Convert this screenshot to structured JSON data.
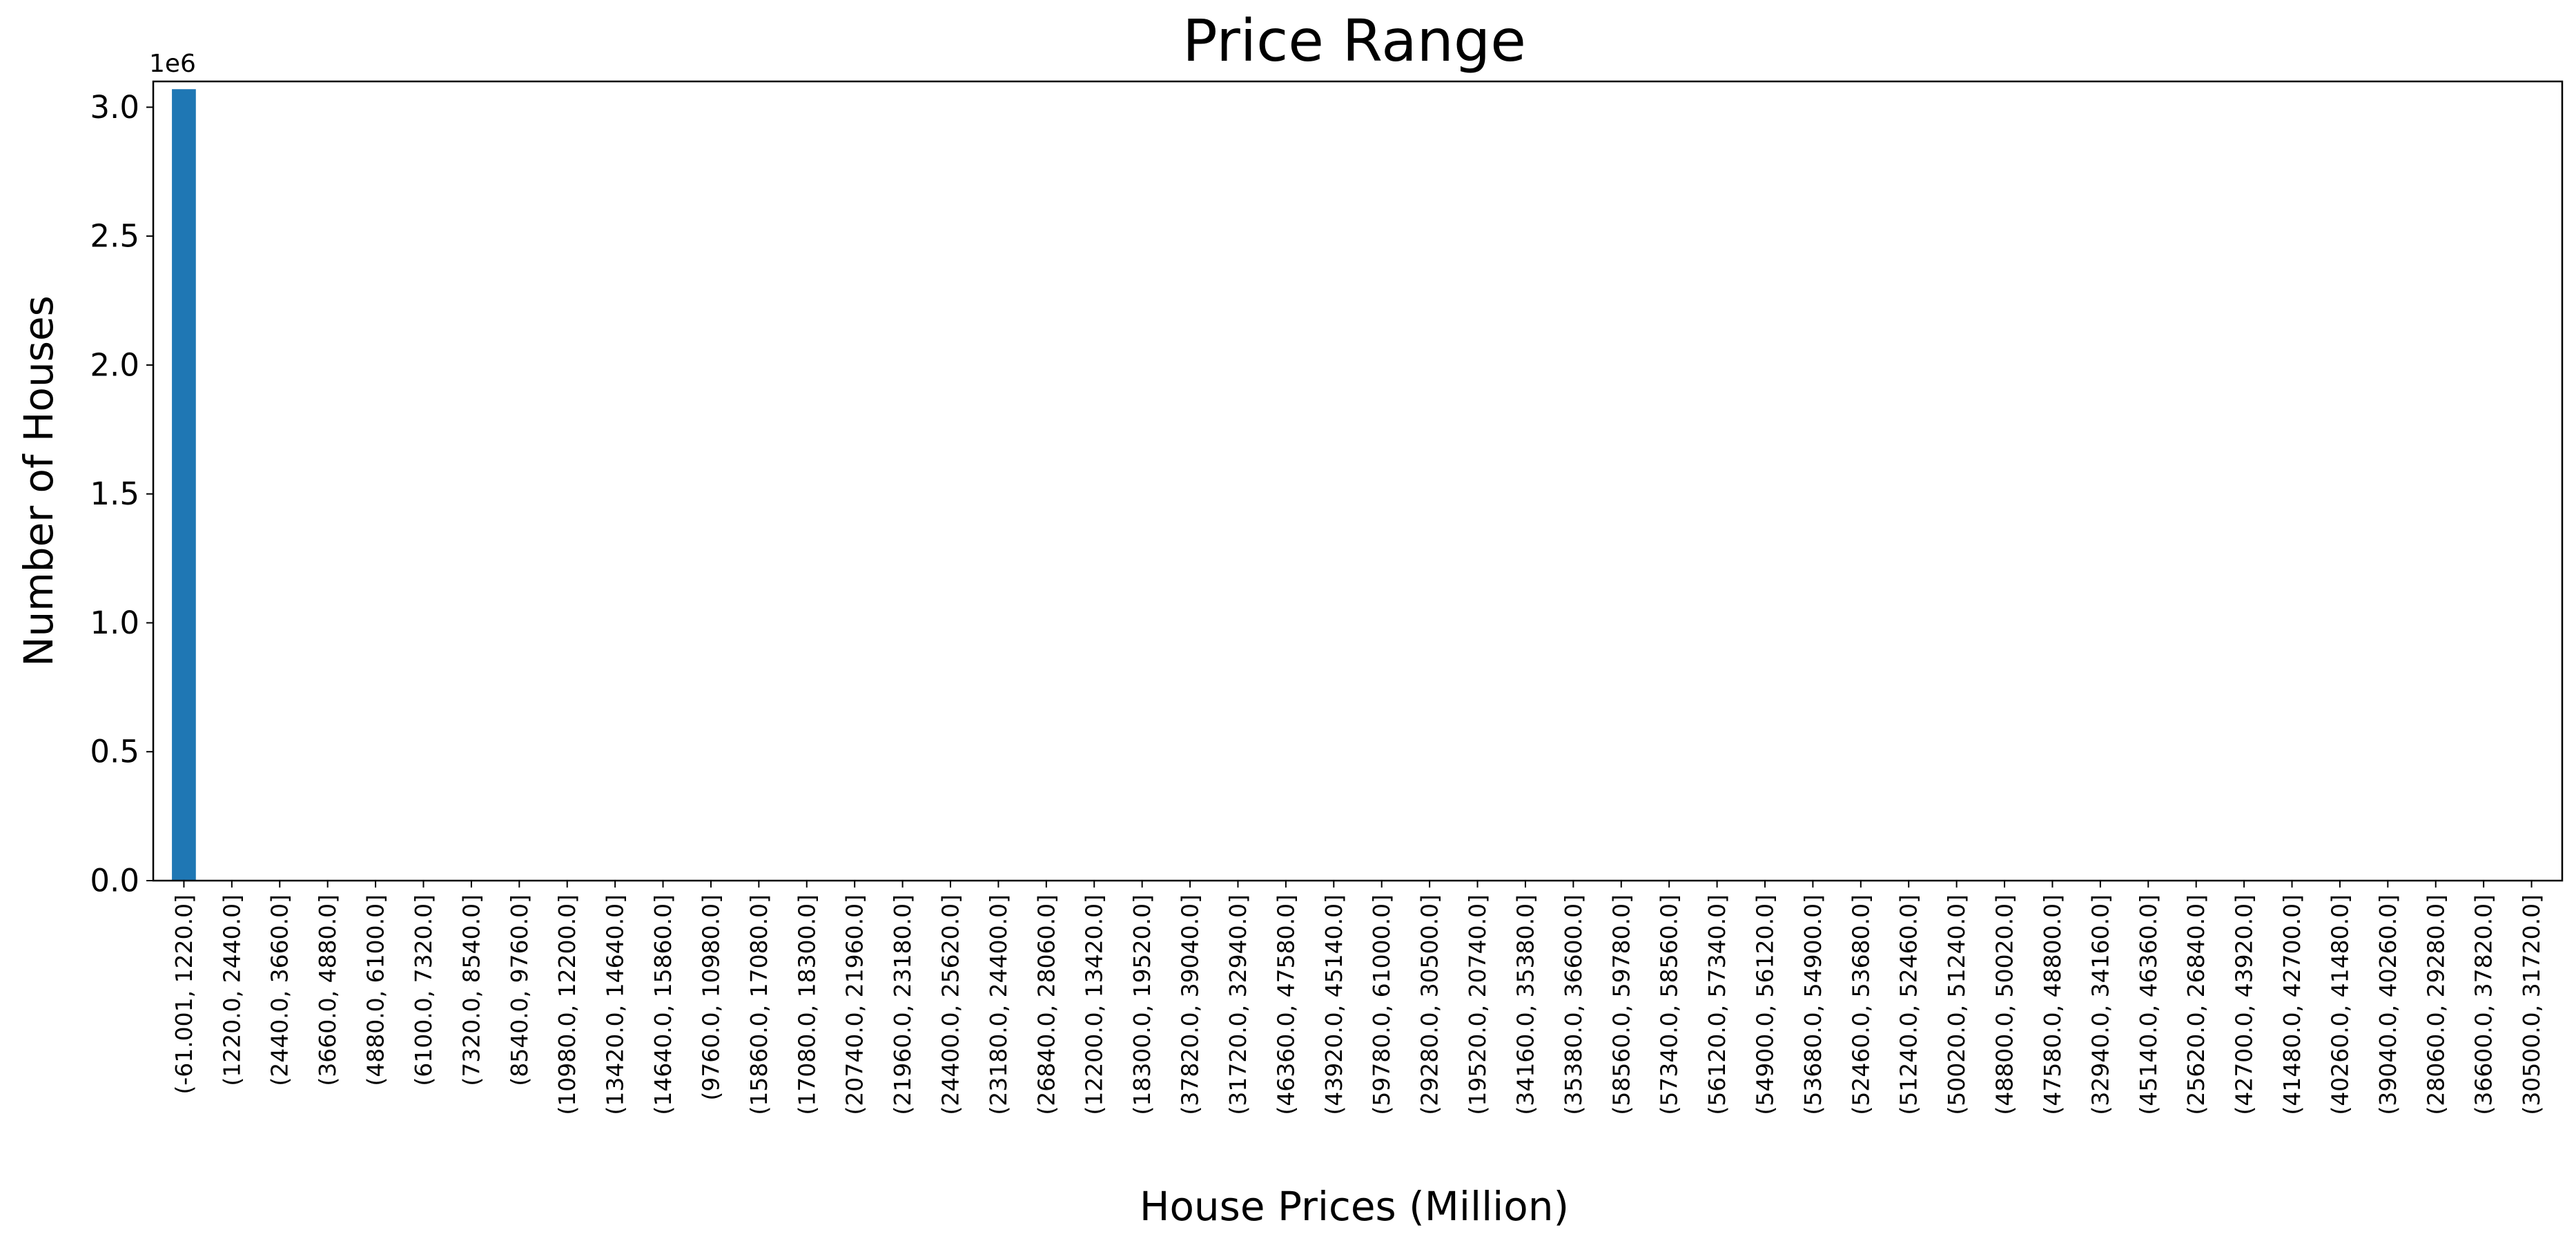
{
  "chart_data": {
    "type": "bar",
    "title": "Price Range",
    "xlabel": "House Prices (Million)",
    "ylabel": "Number of Houses",
    "y_offset_label": "1e6",
    "ylim": [
      0,
      3100000
    ],
    "yticks": [
      0,
      500000,
      1000000,
      1500000,
      2000000,
      2500000,
      3000000
    ],
    "ytick_labels": [
      "0.0",
      "0.5",
      "1.0",
      "1.5",
      "2.0",
      "2.5",
      "3.0"
    ],
    "grid": false,
    "legend": false,
    "bar_color": "#1f77b4",
    "categories": [
      "(-61.001, 1220.0]",
      "(1220.0, 2440.0]",
      "(2440.0, 3660.0]",
      "(3660.0, 4880.0]",
      "(4880.0, 6100.0]",
      "(6100.0, 7320.0]",
      "(7320.0, 8540.0]",
      "(8540.0, 9760.0]",
      "(10980.0, 12200.0]",
      "(13420.0, 14640.0]",
      "(14640.0, 15860.0]",
      "(9760.0, 10980.0]",
      "(15860.0, 17080.0]",
      "(17080.0, 18300.0]",
      "(20740.0, 21960.0]",
      "(21960.0, 23180.0]",
      "(24400.0, 25620.0]",
      "(23180.0, 24400.0]",
      "(26840.0, 28060.0]",
      "(12200.0, 13420.0]",
      "(18300.0, 19520.0]",
      "(37820.0, 39040.0]",
      "(31720.0, 32940.0]",
      "(46360.0, 47580.0]",
      "(43920.0, 45140.0]",
      "(59780.0, 61000.0]",
      "(29280.0, 30500.0]",
      "(19520.0, 20740.0]",
      "(34160.0, 35380.0]",
      "(35380.0, 36600.0]",
      "(58560.0, 59780.0]",
      "(57340.0, 58560.0]",
      "(56120.0, 57340.0]",
      "(54900.0, 56120.0]",
      "(53680.0, 54900.0]",
      "(52460.0, 53680.0]",
      "(51240.0, 52460.0]",
      "(50020.0, 51240.0]",
      "(48800.0, 50020.0]",
      "(47580.0, 48800.0]",
      "(32940.0, 34160.0]",
      "(45140.0, 46360.0]",
      "(25620.0, 26840.0]",
      "(42700.0, 43920.0]",
      "(41480.0, 42700.0]",
      "(40260.0, 41480.0]",
      "(39040.0, 40260.0]",
      "(28060.0, 29280.0]",
      "(36600.0, 37820.0]",
      "(30500.0, 31720.0]"
    ],
    "values": [
      3070000,
      3,
      2,
      1,
      1,
      1,
      1,
      1,
      1,
      1,
      1,
      1,
      1,
      1,
      1,
      1,
      1,
      1,
      1,
      1,
      1,
      1,
      1,
      1,
      1,
      1,
      1,
      1,
      1,
      1,
      0,
      0,
      0,
      0,
      0,
      0,
      0,
      0,
      0,
      0,
      0,
      0,
      0,
      0,
      0,
      0,
      0,
      0,
      0,
      0
    ]
  }
}
